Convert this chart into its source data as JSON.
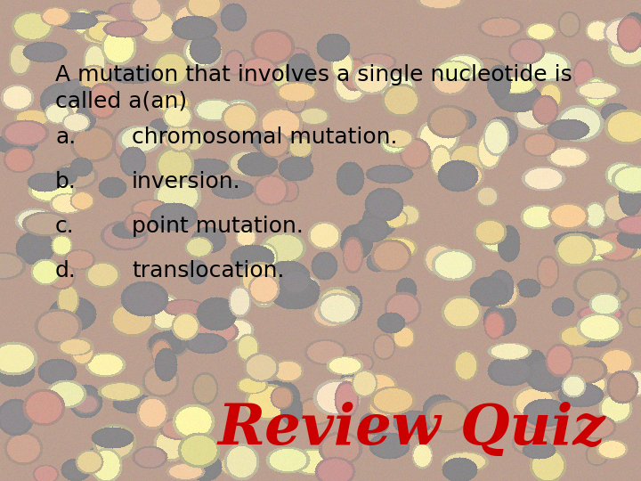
{
  "question_line1": "A mutation that involves a single nucleotide is",
  "question_line2": "called a(an)",
  "options": [
    {
      "label": "a.",
      "text": "chromosomal mutation."
    },
    {
      "label": "b.",
      "text": "inversion."
    },
    {
      "label": "c.",
      "text": "point mutation."
    },
    {
      "label": "d.",
      "text": "translocation."
    }
  ],
  "review_quiz_text": "Review Quiz",
  "review_quiz_color": "#CC0000",
  "text_color": "#000000",
  "question_fontsize": 18,
  "option_fontsize": 18,
  "review_fontsize": 46,
  "bg_overlay_alpha": 0.52,
  "figsize": [
    7.2,
    5.4
  ],
  "dpi": 100
}
